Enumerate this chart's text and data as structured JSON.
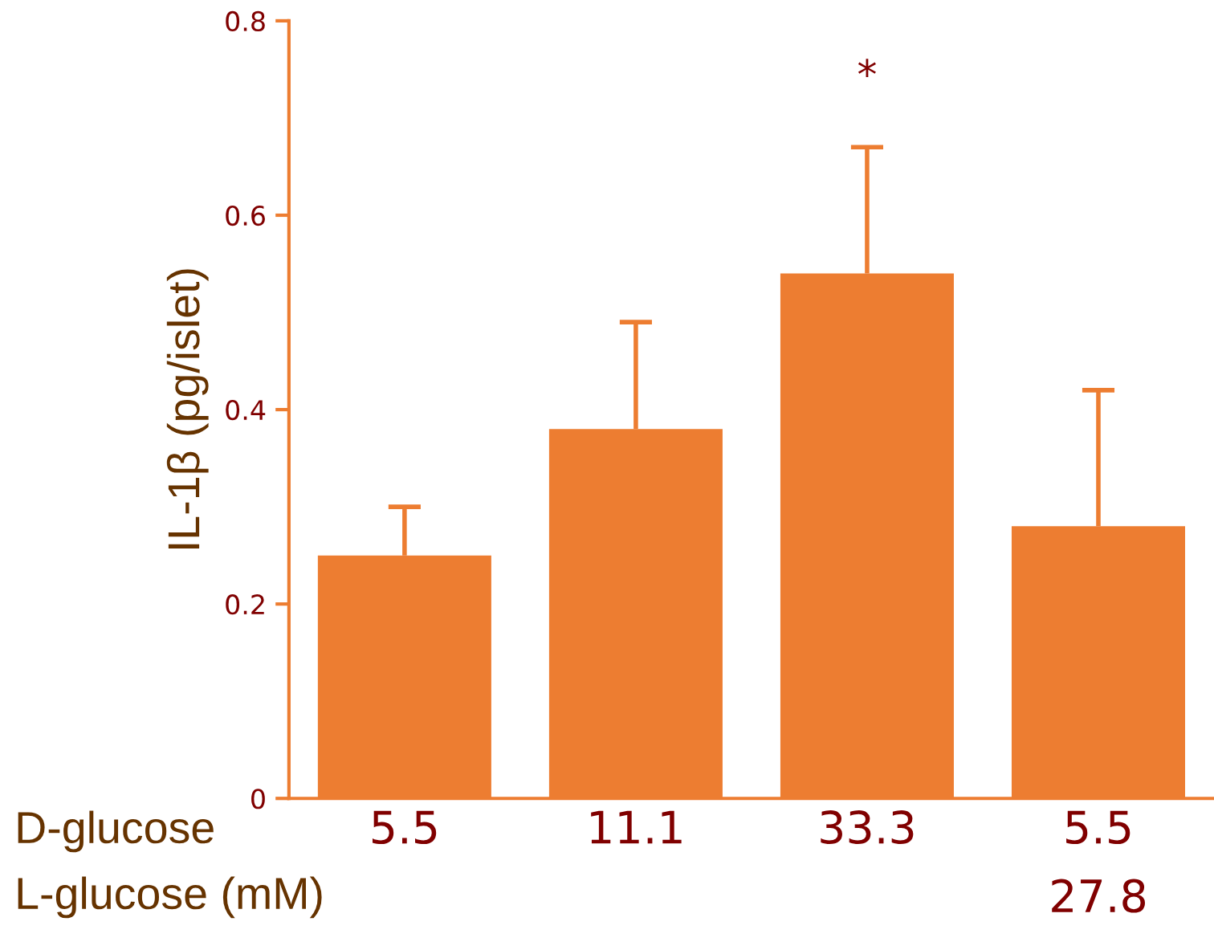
{
  "chart_data": {
    "type": "bar",
    "ylabel": "IL-1β (pg/islet)",
    "xlabel": "D-glucose\nL-glucose (mM)",
    "categories": [
      "5.5",
      "11.1",
      "33.3",
      "5.5\n27.8"
    ],
    "values": [
      0.25,
      0.38,
      0.54,
      0.28
    ],
    "errors": [
      [
        0.25,
        0.3
      ],
      [
        0.38,
        0.49
      ],
      [
        0.54,
        0.67
      ],
      [
        0.28,
        0.42
      ]
    ],
    "color": "#ed7d31",
    "ylim": [
      0,
      0.8
    ],
    "yticks": [
      0,
      0.2,
      0.4,
      0.6,
      0.8
    ],
    "annotations": [
      "*"
    ],
    "grid": false,
    "legend": false
  }
}
